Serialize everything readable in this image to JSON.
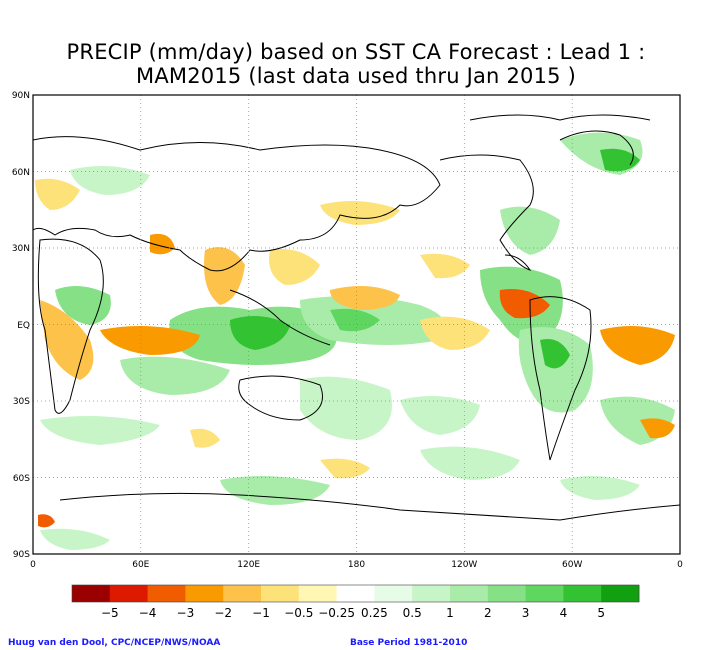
{
  "title_line1": "PRECIP (mm/day) based on SST CA Forecast : Lead 1 :",
  "title_line2": "MAM2015 (last data used thru Jan 2015 )",
  "lat_labels": [
    "90N",
    "60N",
    "30N",
    "EQ",
    "30S",
    "60S",
    "90S"
  ],
  "lon_labels": [
    "0",
    "60E",
    "120E",
    "180",
    "120W",
    "60W",
    "0"
  ],
  "colorbar": {
    "colors": [
      "#9b0000",
      "#dd1a00",
      "#f25c00",
      "#f99a00",
      "#fdc24a",
      "#fde27a",
      "#fff7b3",
      "#ffffff",
      "#e6fce6",
      "#c8f5c8",
      "#a9eca9",
      "#86e086",
      "#5fd65f",
      "#32c232",
      "#10a010"
    ],
    "labels": [
      "−5",
      "−4",
      "−3",
      "−2",
      "−1",
      "−0.5",
      "−0.25",
      "0.25",
      "0.5",
      "1",
      "2",
      "3",
      "4",
      "5"
    ]
  },
  "footer": {
    "credit": "Huug van den Dool, CPC/NCEP/NWS/NOAA",
    "base_period": "Base Period 1981-2010"
  }
}
